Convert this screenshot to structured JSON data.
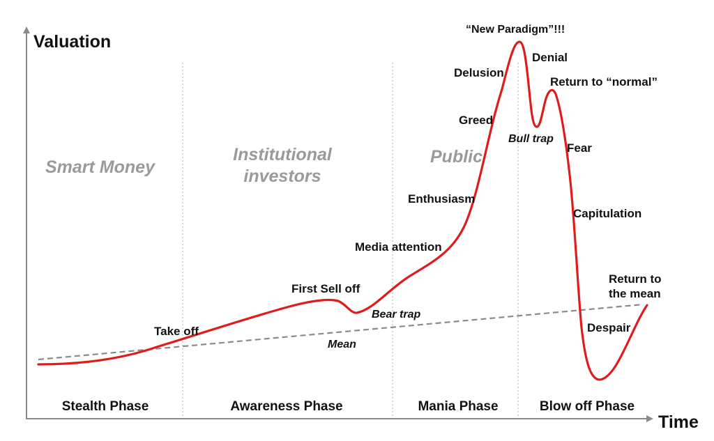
{
  "axes": {
    "y_label": "Valuation",
    "x_label": "Time"
  },
  "crowds": [
    {
      "line1": "Smart Money",
      "line2": ""
    },
    {
      "line1": "Institutional",
      "line2": "investors"
    },
    {
      "line1": "Public",
      "line2": ""
    }
  ],
  "phases": [
    "Stealth Phase",
    "Awareness Phase",
    "Mania Phase",
    "Blow off Phase"
  ],
  "annotations": {
    "take_off": "Take off",
    "first_sell_off": "First Sell off",
    "bear_trap": "Bear trap",
    "mean": "Mean",
    "media_attention": "Media attention",
    "enthusiasm": "Enthusiasm",
    "greed": "Greed",
    "delusion": "Delusion",
    "new_paradigm": "“New Paradigm”!!!",
    "denial": "Denial",
    "return_to_normal": "Return to “normal”",
    "bull_trap": "Bull trap",
    "fear": "Fear",
    "capitulation": "Capitulation",
    "return_to_mean_1": "Return to",
    "return_to_mean_2": "the mean",
    "despair": "Despair"
  },
  "colors": {
    "curve": "#e01b1b",
    "mean_line": "#8a8a8a",
    "axis": "#8a8a8a",
    "divider": "#c8c8c8",
    "crowd_text": "#9a9a9a"
  }
}
